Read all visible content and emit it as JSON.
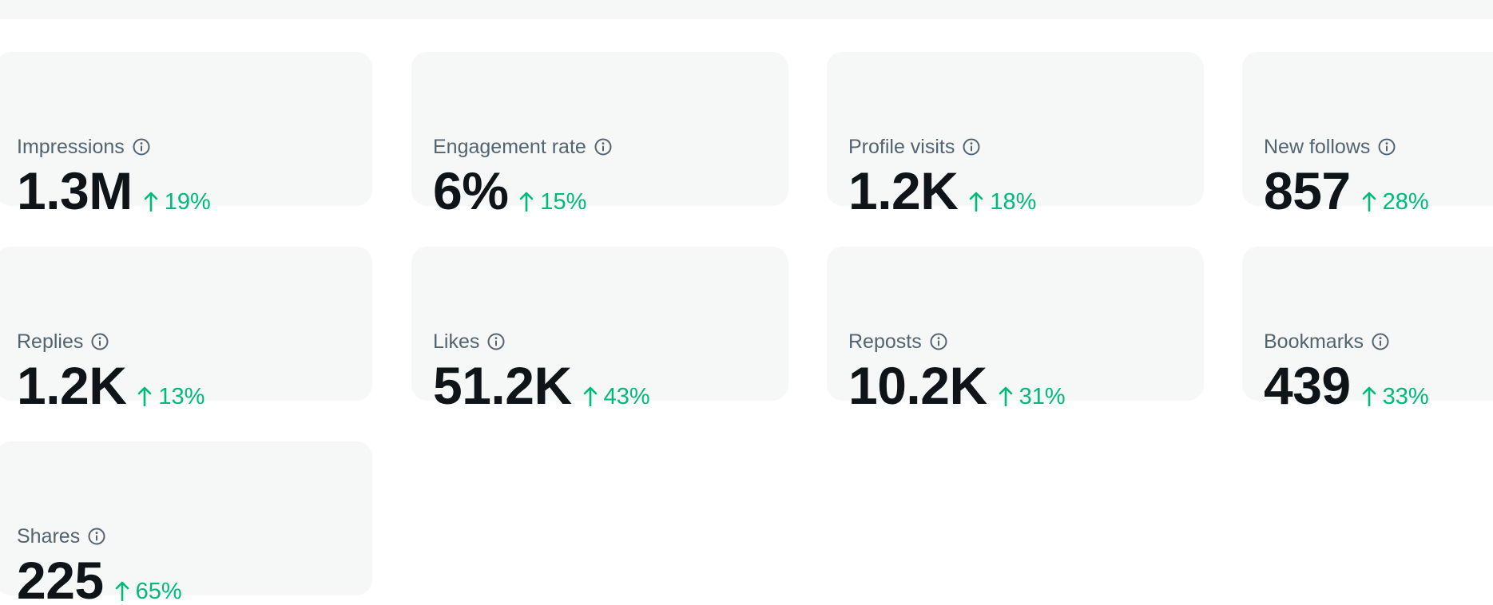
{
  "metrics": [
    {
      "label": "Impressions",
      "value": "1.3M",
      "change": "19%"
    },
    {
      "label": "Engagement rate",
      "value": "6%",
      "change": "15%"
    },
    {
      "label": "Profile visits",
      "value": "1.2K",
      "change": "18%"
    },
    {
      "label": "New follows",
      "value": "857",
      "change": "28%"
    },
    {
      "label": "Replies",
      "value": "1.2K",
      "change": "13%"
    },
    {
      "label": "Likes",
      "value": "51.2K",
      "change": "43%"
    },
    {
      "label": "Reposts",
      "value": "10.2K",
      "change": "31%"
    },
    {
      "label": "Bookmarks",
      "value": "439",
      "change": "33%"
    },
    {
      "label": "Shares",
      "value": "225",
      "change": "65%"
    }
  ],
  "colors": {
    "card_background": "#f6f7f7",
    "label": "#536471",
    "value": "#0f1419",
    "positive_change": "#00ba7c"
  }
}
